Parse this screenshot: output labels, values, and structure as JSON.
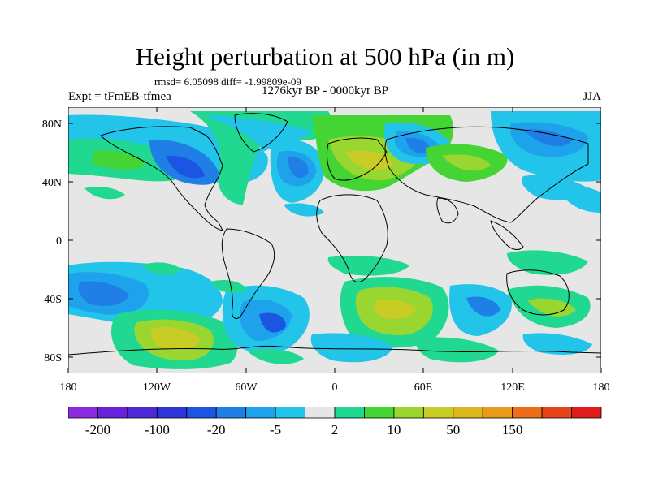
{
  "title": "Height perturbation at 500 hPa (in m)",
  "stats": "rmsd= 6.05098 diff= -1.99809e-09",
  "experiment": "Expt = tFmEB-tfmea",
  "period": "1276kyr BP - 0000kyr BP",
  "season": "JJA",
  "lat_ticks": [
    "80N",
    "40N",
    "0",
    "40S",
    "80S"
  ],
  "lon_ticks": [
    "180",
    "120W",
    "60W",
    "0",
    "60E",
    "120E",
    "180"
  ],
  "colorbar": {
    "colors": [
      "#8a2be2",
      "#6a1fd8",
      "#4b2ad6",
      "#2f35d6",
      "#1c55e2",
      "#1f7fe6",
      "#1fa2ec",
      "#22c4ea",
      "#e6e6e6",
      "#20d890",
      "#44d434",
      "#9ad630",
      "#c8cc24",
      "#dcb81e",
      "#e89a1c",
      "#ec6e18",
      "#e8441a",
      "#e01b1b"
    ],
    "labels": [
      "-200",
      "-100",
      "-20",
      "-5",
      "2",
      "10",
      "50",
      "150"
    ]
  },
  "map_colors": {
    "neutral": "#e6e6e6",
    "light_blue": "#22c4ea",
    "blue": "#1fa2ec",
    "mid_blue": "#1f7fe6",
    "dark_blue": "#1c55e2",
    "teal_green": "#20d890",
    "green": "#44d434",
    "yellow_green": "#9ad630",
    "yellow": "#c8cc24",
    "orange": "#dcb81e"
  }
}
